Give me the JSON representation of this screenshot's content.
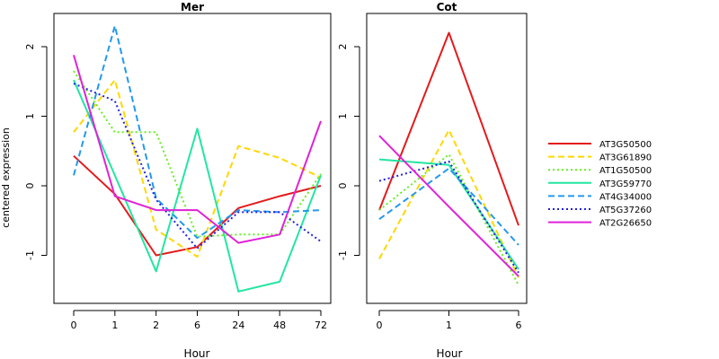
{
  "chart_data": [
    {
      "type": "line",
      "title": "Mer",
      "xlabel": "Hour",
      "ylabel": "centered expression",
      "categories": [
        "0",
        "1",
        "2",
        "6",
        "24",
        "48",
        "72"
      ],
      "ylim": [
        -1.7,
        2.5
      ],
      "yticks": [
        -1,
        0,
        1,
        2
      ],
      "series": [
        {
          "name": "AT3G50500",
          "values": [
            0.43,
            -0.12,
            -1.0,
            -0.88,
            -0.32,
            -0.15,
            0.0
          ]
        },
        {
          "name": "AT3G61890",
          "values": [
            0.77,
            1.52,
            -0.63,
            -1.02,
            0.57,
            0.4,
            0.12
          ]
        },
        {
          "name": "AT1G50500",
          "values": [
            1.65,
            0.77,
            0.77,
            -0.73,
            -0.7,
            -0.7,
            0.17
          ]
        },
        {
          "name": "AT3G59770",
          "values": [
            1.52,
            0.15,
            -1.23,
            0.82,
            -1.52,
            -1.38,
            0.15
          ]
        },
        {
          "name": "AT4G34000",
          "values": [
            0.15,
            2.3,
            -0.18,
            -0.75,
            -0.35,
            -0.38,
            -0.35
          ]
        },
        {
          "name": "AT5G37260",
          "values": [
            1.47,
            1.22,
            -0.2,
            -0.9,
            -0.38,
            -0.38,
            -0.8
          ]
        },
        {
          "name": "AT2G26650",
          "values": [
            1.88,
            -0.15,
            -0.35,
            -0.35,
            -0.82,
            -0.7,
            0.93
          ]
        }
      ]
    },
    {
      "type": "line",
      "title": "Cot",
      "xlabel": "Hour",
      "ylabel": "",
      "categories": [
        "0",
        "1",
        "6"
      ],
      "ylim": [
        -1.7,
        2.5
      ],
      "yticks": [
        -1,
        0,
        1,
        2
      ],
      "series": [
        {
          "name": "AT3G50500",
          "values": [
            -0.35,
            2.2,
            -0.57
          ]
        },
        {
          "name": "AT3G61890",
          "values": [
            -1.05,
            0.8,
            -1.32
          ]
        },
        {
          "name": "AT1G50500",
          "values": [
            -0.35,
            0.45,
            -1.43
          ]
        },
        {
          "name": "AT3G59770",
          "values": [
            0.38,
            0.3,
            -1.2
          ]
        },
        {
          "name": "AT4G34000",
          "values": [
            -0.48,
            0.25,
            -0.85
          ]
        },
        {
          "name": "AT5G37260",
          "values": [
            0.07,
            0.35,
            -1.25
          ]
        },
        {
          "name": "AT2G26650",
          "values": [
            0.72,
            -0.3,
            -1.3
          ]
        }
      ]
    }
  ],
  "legend": {
    "placement": "right",
    "items": [
      {
        "label": "AT3G50500",
        "color": "#e41a1c",
        "dash": "solid"
      },
      {
        "label": "AT3G61890",
        "color": "#ffd700",
        "dash": "dashed"
      },
      {
        "label": "AT1G50500",
        "color": "#66ee22",
        "dash": "dotted"
      },
      {
        "label": "AT3G59770",
        "color": "#22e6a0",
        "dash": "solid"
      },
      {
        "label": "AT4G34000",
        "color": "#2299ee",
        "dash": "dashed"
      },
      {
        "label": "AT5G37260",
        "color": "#2222dd",
        "dash": "dotted"
      },
      {
        "label": "AT2G26650",
        "color": "#e022d8",
        "dash": "solid"
      }
    ]
  }
}
